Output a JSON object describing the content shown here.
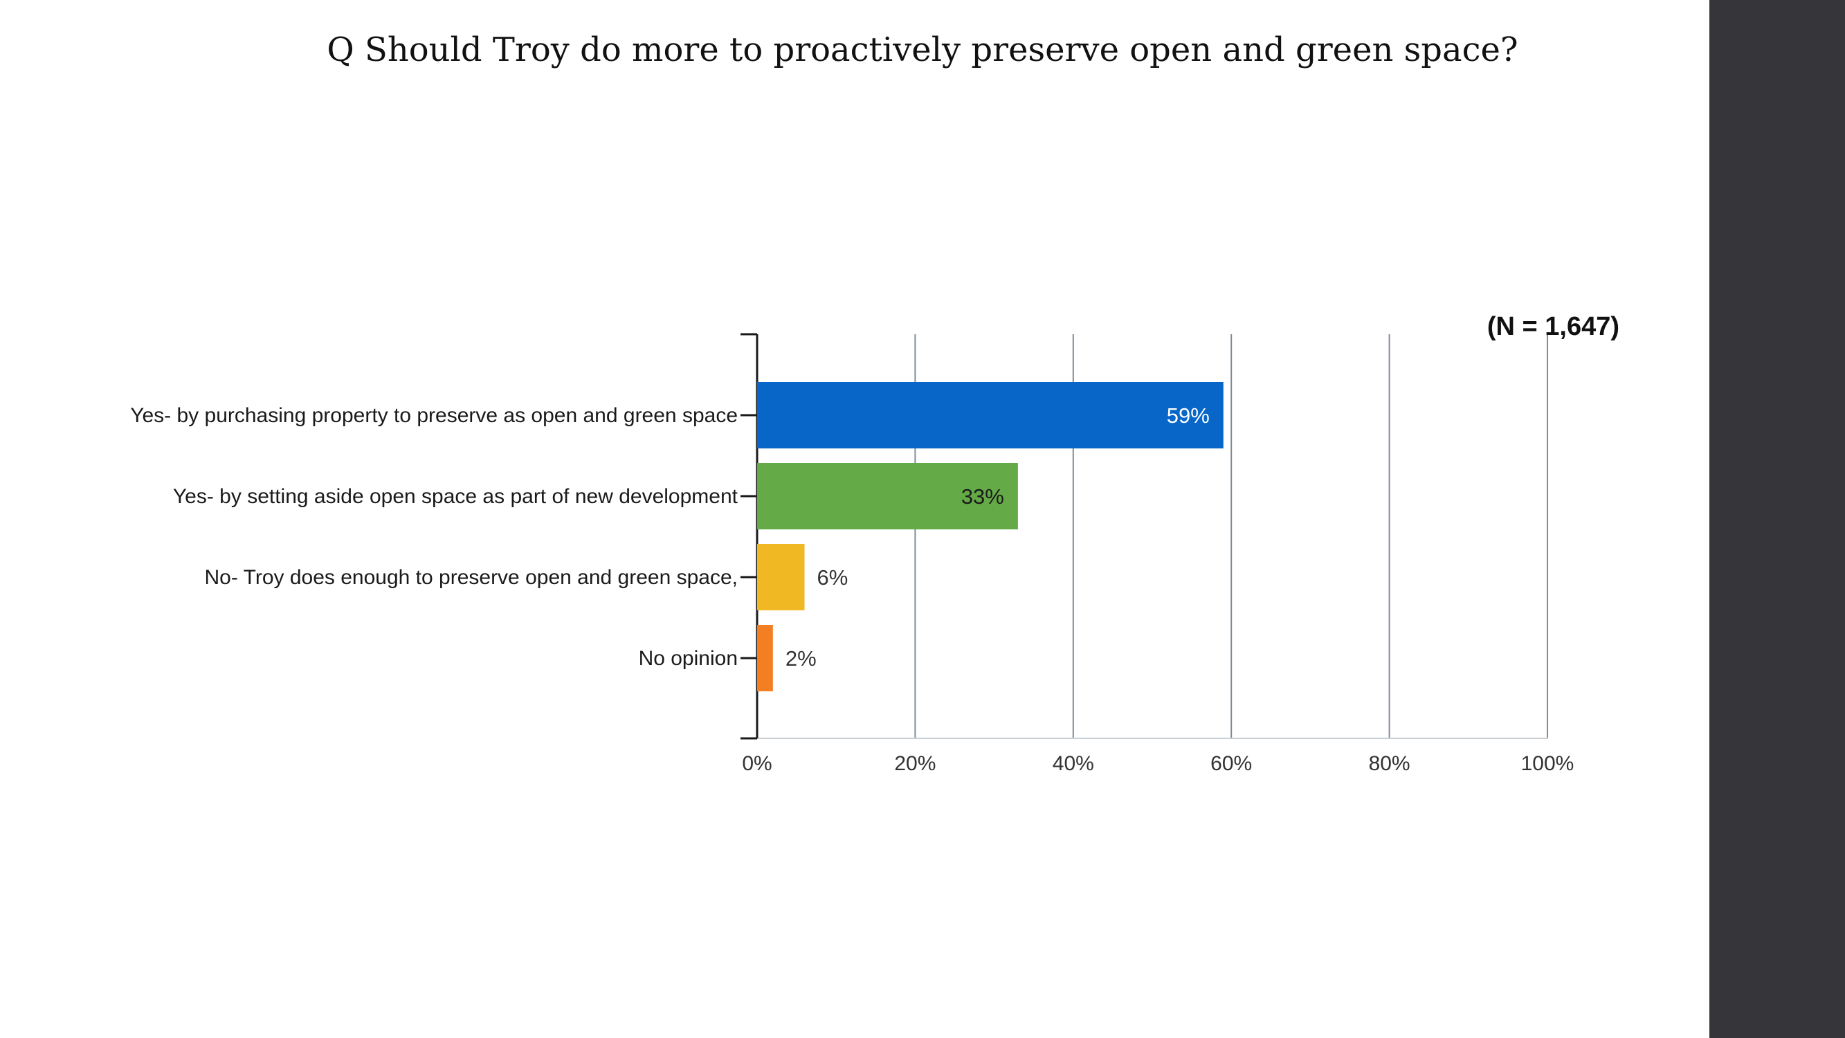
{
  "slide": {
    "title": "Q Should Troy do more to proactively preserve open and green space?"
  },
  "chart_data": {
    "type": "bar",
    "orientation": "horizontal",
    "title": "",
    "sample_note": "(N = 1,647)",
    "categories": [
      "Yes- by purchasing property to preserve as open and green space",
      "Yes- by setting aside open space as part of new development",
      "No- Troy does enough to preserve open and green space,",
      "No opinion"
    ],
    "values": [
      59,
      33,
      6,
      2
    ],
    "data_labels": [
      "59%",
      "33%",
      "6%",
      "2%"
    ],
    "colors": [
      "#0766c8",
      "#64aa47",
      "#f0b823",
      "#f47e22"
    ],
    "label_colors": [
      "#ffffff",
      "#1a1a1a",
      "#333333",
      "#333333"
    ],
    "xlim": [
      0,
      100
    ],
    "ticks": [
      0,
      20,
      40,
      60,
      80,
      100
    ],
    "tick_labels": [
      "0%",
      "20%",
      "40%",
      "60%",
      "80%",
      "100%"
    ],
    "grid": true
  }
}
